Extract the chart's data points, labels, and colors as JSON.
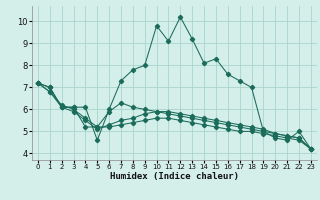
{
  "xlabel": "Humidex (Indice chaleur)",
  "background_color": "#d4eeea",
  "grid_color": "#a8d4cc",
  "line_color": "#1a6b5a",
  "xlim": [
    -0.5,
    23.5
  ],
  "ylim": [
    3.7,
    10.7
  ],
  "yticks": [
    4,
    5,
    6,
    7,
    8,
    9,
    10
  ],
  "xticks": [
    0,
    1,
    2,
    3,
    4,
    5,
    6,
    7,
    8,
    9,
    10,
    11,
    12,
    13,
    14,
    15,
    16,
    17,
    18,
    19,
    20,
    21,
    22,
    23
  ],
  "series": [
    [
      7.2,
      7.0,
      6.1,
      6.1,
      6.1,
      4.6,
      6.0,
      7.3,
      7.8,
      8.0,
      9.8,
      9.1,
      10.2,
      9.2,
      8.1,
      8.3,
      7.6,
      7.3,
      7.0,
      5.0,
      4.7,
      4.6,
      5.0,
      4.2
    ],
    [
      7.2,
      7.0,
      6.1,
      6.1,
      5.2,
      5.2,
      5.9,
      6.3,
      6.1,
      6.0,
      5.9,
      5.8,
      5.7,
      5.6,
      5.5,
      5.4,
      5.3,
      5.2,
      5.1,
      5.0,
      4.9,
      4.8,
      4.7,
      4.2
    ],
    [
      7.2,
      6.8,
      6.1,
      5.9,
      5.5,
      5.1,
      5.3,
      5.5,
      5.6,
      5.8,
      5.9,
      5.9,
      5.8,
      5.7,
      5.6,
      5.5,
      5.4,
      5.3,
      5.2,
      5.1,
      4.9,
      4.8,
      4.7,
      4.2
    ],
    [
      7.2,
      6.8,
      6.2,
      6.0,
      5.6,
      5.2,
      5.2,
      5.3,
      5.4,
      5.5,
      5.6,
      5.6,
      5.5,
      5.4,
      5.3,
      5.2,
      5.1,
      5.0,
      5.0,
      4.9,
      4.8,
      4.7,
      4.6,
      4.2
    ]
  ]
}
